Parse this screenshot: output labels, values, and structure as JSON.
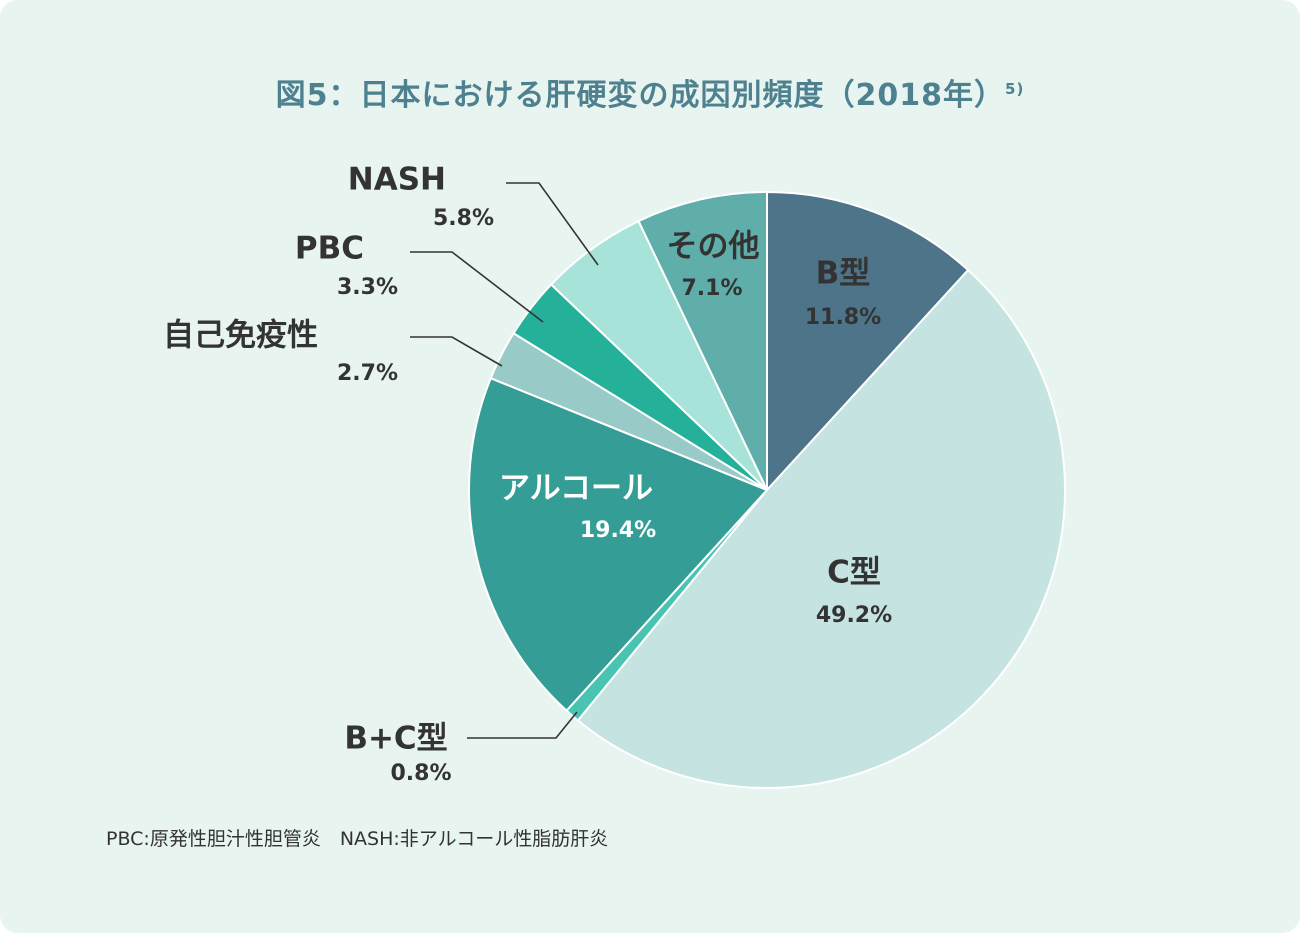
{
  "title": {
    "text": "図5：日本における肝硬変の成因別頻度（2018年）",
    "ref": "5)"
  },
  "footnote": "PBC:原発性胆汁性胆管炎　NASH:非アルコール性脂肪肝炎",
  "chart_data": {
    "type": "pie",
    "title": "図5：日本における肝硬変の成因別頻度（2018年）",
    "slices": [
      {
        "label": "B型",
        "value": 11.8,
        "pct": "11.8%",
        "color": "#4e7489"
      },
      {
        "label": "C型",
        "value": 49.2,
        "pct": "49.2%",
        "color": "#c5e3e0"
      },
      {
        "label": "B+C型",
        "value": 0.8,
        "pct": "0.8%",
        "color": "#49c4b2"
      },
      {
        "label": "アルコール",
        "value": 19.4,
        "pct": "19.4%",
        "color": "#349d96"
      },
      {
        "label": "自己免疫性",
        "value": 2.7,
        "pct": "2.7%",
        "color": "#98cbc7"
      },
      {
        "label": "PBC",
        "value": 3.3,
        "pct": "3.3%",
        "color": "#25b09a"
      },
      {
        "label": "NASH",
        "value": 5.8,
        "pct": "5.8%",
        "color": "#a7e3d9"
      },
      {
        "label": "その他",
        "value": 7.1,
        "pct": "7.1%",
        "color": "#5faeaa"
      }
    ],
    "start": "12 o'clock",
    "direction": "clockwise",
    "legend": "none"
  }
}
